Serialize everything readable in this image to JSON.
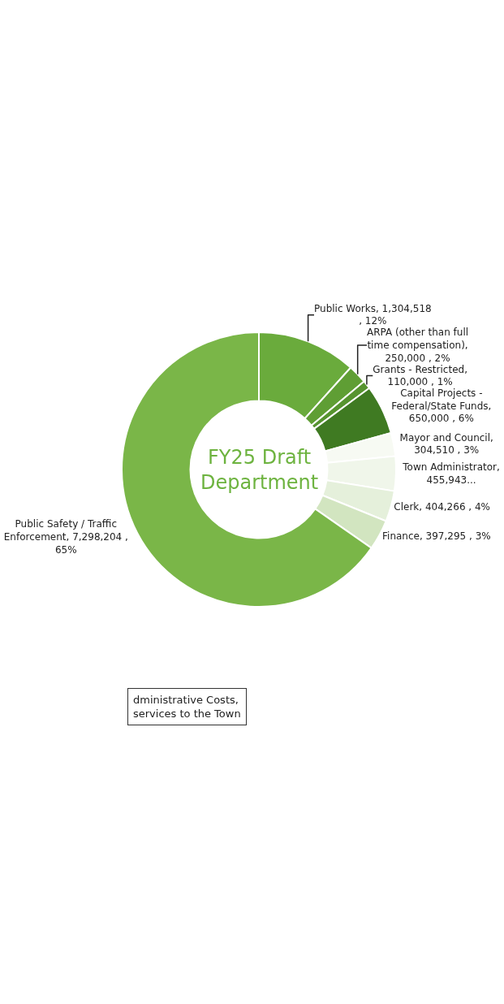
{
  "chart_data": {
    "type": "donut",
    "title": "FY25 Draft Department",
    "categories": [
      "Public Works",
      "ARPA (other than full time compensation)",
      "Grants - Restricted",
      "Capital Projects - Federal/State Funds",
      "Mayor and Council",
      "Town Administrator",
      "Clerk",
      "Finance",
      "Public Safety / Traffic Enforcement"
    ],
    "values": [
      1304518,
      250000,
      110000,
      650000,
      304510,
      455943,
      404266,
      397295,
      7298204
    ],
    "value_labels": [
      ", 1,304,518 , 12%",
      ", 250,000 , 2%",
      ", 110,000 , 1%",
      ", 650,000 , 6%",
      ", 304,510 , 3%",
      ", 455,943...",
      ", 404,266 , 4%",
      ", 397,295 , 3%",
      ", 7,298,204 , 65%"
    ],
    "colors": [
      "#6aab3c",
      "#5f9e34",
      "#56942f",
      "#3f7a22",
      "#f7faf3",
      "#f0f6ea",
      "#e5f0db",
      "#d2e5c0",
      "#7ab648"
    ],
    "annotations": [
      "dministrative Costs, services to the Town"
    ],
    "legend": false
  }
}
